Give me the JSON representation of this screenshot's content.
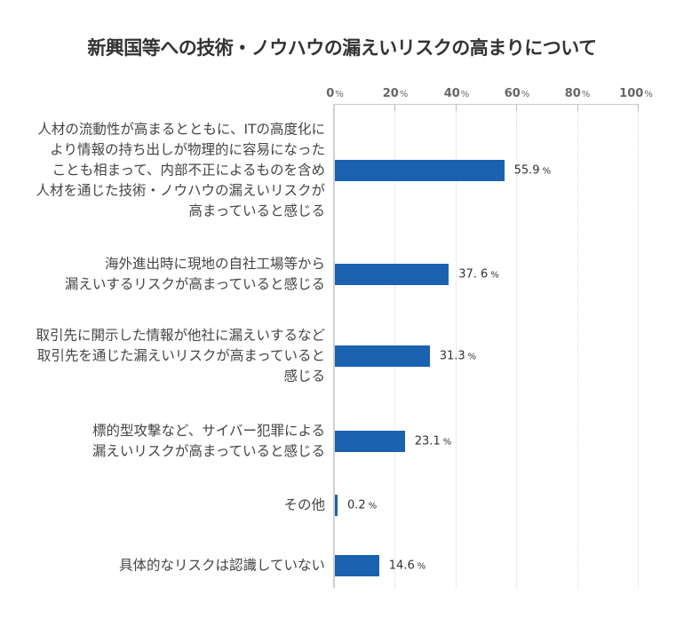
{
  "chart_data": {
    "type": "bar",
    "orientation": "horizontal",
    "title": "新興国等への技術・ノウハウの漏えいリスクの高まりについて",
    "xlabel": "",
    "ylabel": "",
    "xlim": [
      0,
      100
    ],
    "x_ticks": [
      "0",
      "20",
      "40",
      "60",
      "80",
      "100"
    ],
    "tick_unit": "%",
    "grid": true,
    "legend": null,
    "bar_color": "#1a62b0",
    "categories": [
      "人材の流動性が高まるとともに、ITの高度化により情報の持ち出しが物理的に容易になったことも相まって、内部不正によるものを含め人材を通じた技術・ノウハウの漏えいリスクが高まっていると感じる",
      "海外進出時に現地の自社工場等から漏えいするリスクが高まっていると感じる",
      "取引先に開示した情報が他社に漏えいするなど取引先を通じた漏えいリスクが高まっていると感じる",
      "標的型攻撃など、サイバー犯罪による漏えいリスクが高まっていると感じる",
      "その他",
      "具体的なリスクは認識していない"
    ],
    "values": [
      55.9,
      37.6,
      31.3,
      23.1,
      0.2,
      14.6
    ],
    "value_labels": [
      "55.9",
      "37. 6",
      "31.3",
      "23.1",
      "0.2",
      "14.6"
    ],
    "category_lines": [
      "人材の流動性が高まるとともに、ITの高度化に\nより情報の持ち出しが物理的に容易になった\nことも相まって、内部不正によるものを含め\n人材を通じた技術・ノウハウの漏えいリスクが\n高まっていると感じる",
      "海外進出時に現地の自社工場等から\n漏えいするリスクが高まっていると感じる",
      "取引先に開示した情報が他社に漏えいするなど\n取引先を通じた漏えいリスクが高まっていると\n感じる",
      "標的型攻撃など、サイバー犯罪による\n漏えいリスクが高まっていると感じる",
      "その他",
      "具体的なリスクは認識していない"
    ],
    "unit_label": "%"
  }
}
